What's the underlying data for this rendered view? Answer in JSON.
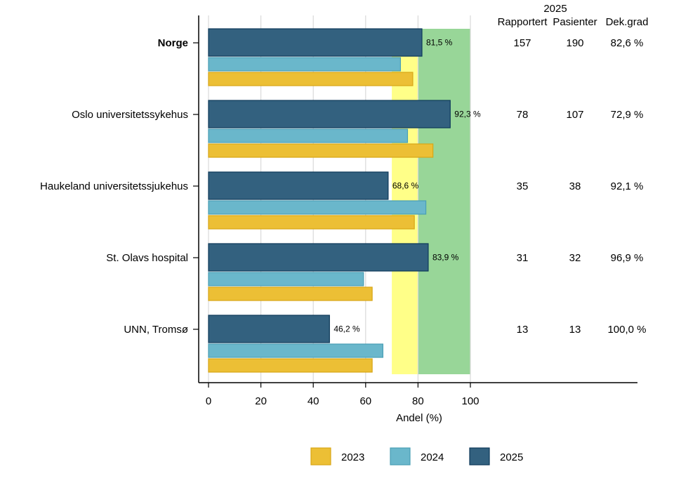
{
  "chart_data": {
    "type": "bar",
    "orientation": "horizontal",
    "categories": [
      "Norge",
      "Oslo universitetssykehus",
      "Haukeland universitetssjukehus",
      "St. Olavs hospital",
      "UNN, Tromsø"
    ],
    "bold_categories": [
      "Norge"
    ],
    "series": [
      {
        "name": "2025",
        "color": "#33617f",
        "values": [
          81.5,
          92.3,
          68.6,
          83.9,
          46.2
        ],
        "labels": [
          "81,5 %",
          "92,3 %",
          "68,6 %",
          "83,9 %",
          "46,2 %"
        ]
      },
      {
        "name": "2024",
        "color": "#6ab7cb",
        "values": [
          73.3,
          76.0,
          83.0,
          59.2,
          66.6
        ]
      },
      {
        "name": "2023",
        "color": "#ecbf35",
        "values": [
          78.0,
          85.7,
          78.6,
          62.5,
          62.5
        ]
      }
    ],
    "target_bands": [
      {
        "from": 70,
        "to": 80,
        "color": "#ffff88"
      },
      {
        "from": 80,
        "to": 100,
        "color": "#98d698"
      }
    ],
    "xlabel": "Andel (%)",
    "xlim": [
      0,
      100
    ],
    "xticks": [
      "0",
      "20",
      "40",
      "60",
      "80",
      "100"
    ],
    "grid": true,
    "legend": {
      "placement": "bottom",
      "order": [
        "2023",
        "2024",
        "2025"
      ]
    },
    "table": {
      "group_header": "2025",
      "columns": [
        "Rapportert",
        "Pasienter",
        "Dek.grad"
      ],
      "rows": [
        [
          "157",
          "190",
          "82,6 %"
        ],
        [
          "78",
          "107",
          "72,9 %"
        ],
        [
          "35",
          "38",
          "92,1 %"
        ],
        [
          "31",
          "32",
          "96,9 %"
        ],
        [
          "13",
          "13",
          "100,0 %"
        ]
      ]
    }
  }
}
